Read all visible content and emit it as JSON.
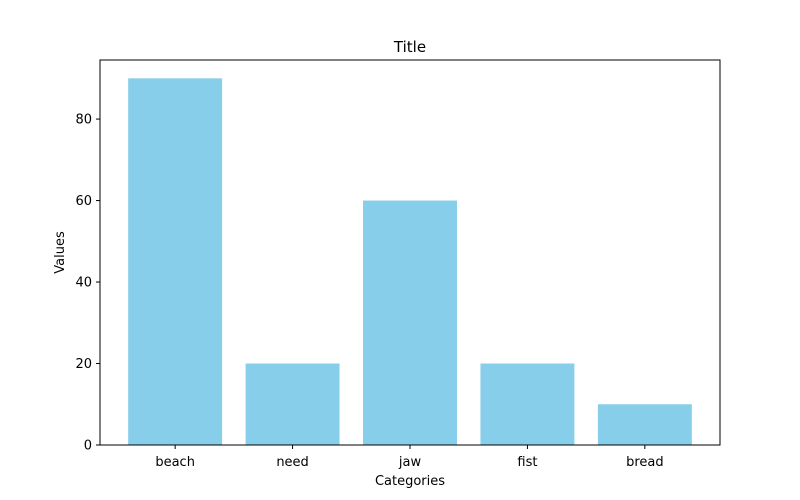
{
  "chart_data": {
    "type": "bar",
    "title": "Title",
    "xlabel": "Categories",
    "ylabel": "Values",
    "categories": [
      "beach",
      "need",
      "jaw",
      "fist",
      "bread"
    ],
    "values": [
      90,
      20,
      60,
      20,
      10
    ],
    "ylim": [
      0,
      94.5
    ],
    "yticks": [
      0,
      20,
      40,
      60,
      80
    ],
    "bar_color": "#87CEEB",
    "grid": false,
    "legend": "none"
  }
}
